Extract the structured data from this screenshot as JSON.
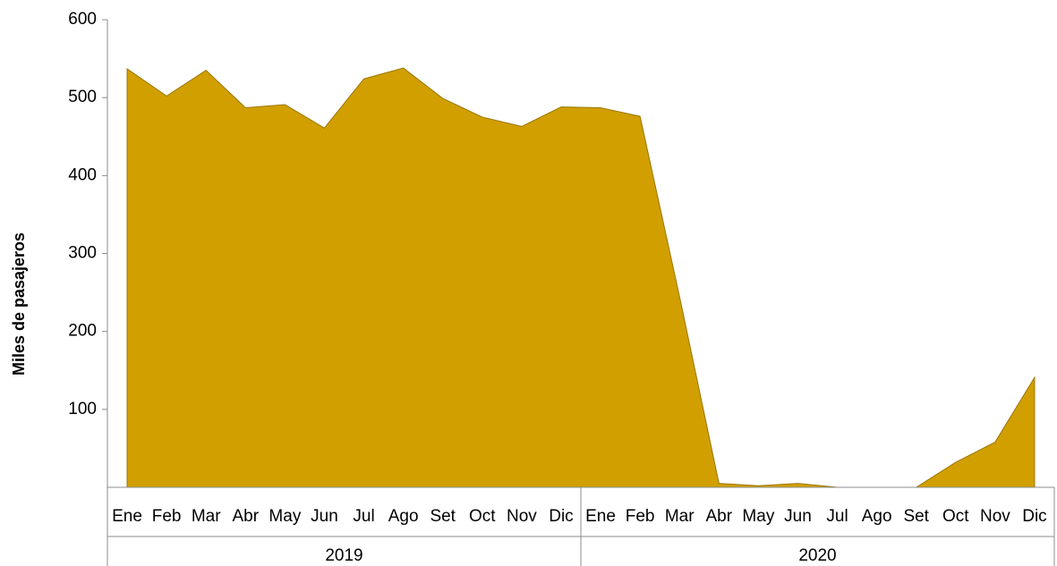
{
  "chart_data": {
    "type": "area",
    "y_label": "Miles de pasajeros",
    "categories": [
      "Ene",
      "Feb",
      "Mar",
      "Abr",
      "May",
      "Jun",
      "Jul",
      "Ago",
      "Set",
      "Oct",
      "Nov",
      "Dic",
      "Ene",
      "Feb",
      "Mar",
      "Abr",
      "May",
      "Jun",
      "Jul",
      "Ago",
      "Set",
      "Oct",
      "Nov",
      "Dic"
    ],
    "groups": [
      "2019",
      "2020"
    ],
    "values": [
      537,
      502,
      535,
      487,
      491,
      461,
      524,
      538,
      499,
      475,
      463,
      488,
      487,
      476,
      245,
      5,
      2,
      5,
      0,
      0,
      0,
      32,
      58,
      141
    ],
    "color": "#d19f00",
    "ylim": [
      0,
      600
    ],
    "yticks": [
      100,
      200,
      300,
      400,
      500,
      600
    ]
  }
}
